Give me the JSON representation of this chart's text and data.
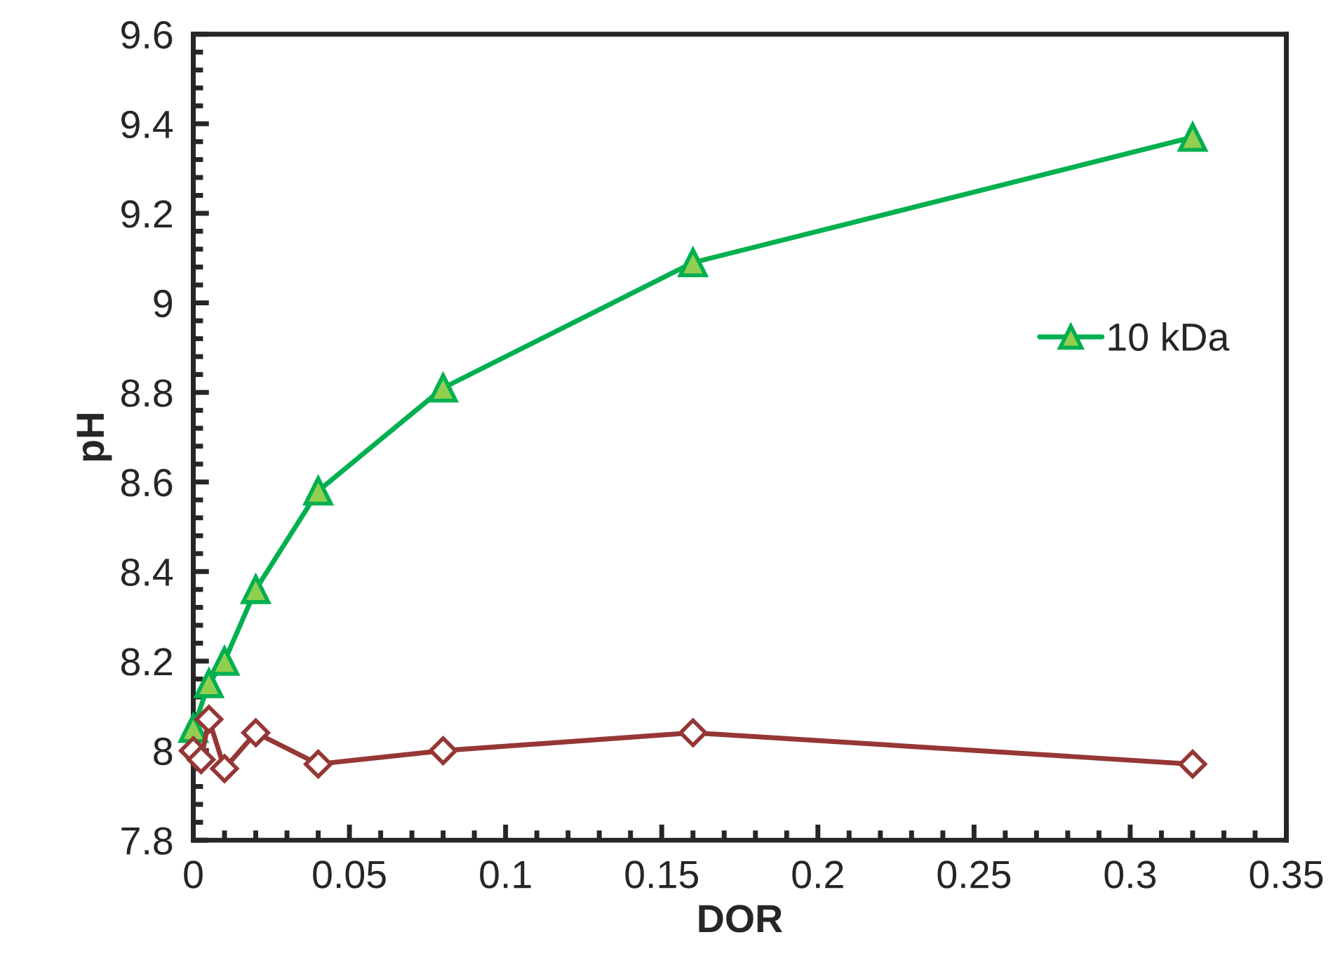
{
  "chart_data": {
    "type": "line",
    "xlabel": "DOR",
    "ylabel": "pH",
    "xlim": [
      0,
      0.35
    ],
    "xticks": [
      0,
      0.05,
      0.1,
      0.15,
      0.2,
      0.25,
      0.3,
      0.35
    ],
    "ylim": [
      7.8,
      9.6
    ],
    "yticks": [
      7.8,
      8,
      8.2,
      8.4,
      8.6,
      8.8,
      9,
      9.2,
      9.4,
      9.6
    ],
    "legend": "right",
    "grid": false,
    "series": [
      {
        "name": "10 kDa",
        "color": "#00b050",
        "marker": "triangle",
        "x": [
          0,
          0.005,
          0.01,
          0.02,
          0.04,
          0.08,
          0.16,
          0.32
        ],
        "values": [
          8.05,
          8.15,
          8.2,
          8.36,
          8.58,
          8.81,
          9.09,
          9.37
        ]
      },
      {
        "color": "#953735",
        "marker": "diamond",
        "x": [
          0,
          0.0025,
          0.005,
          0.01,
          0.02,
          0.04,
          0.08,
          0.16,
          0.32
        ],
        "values": [
          8.0,
          7.98,
          8.07,
          7.96,
          8.04,
          7.97,
          8.0,
          8.04,
          7.97
        ]
      }
    ]
  }
}
